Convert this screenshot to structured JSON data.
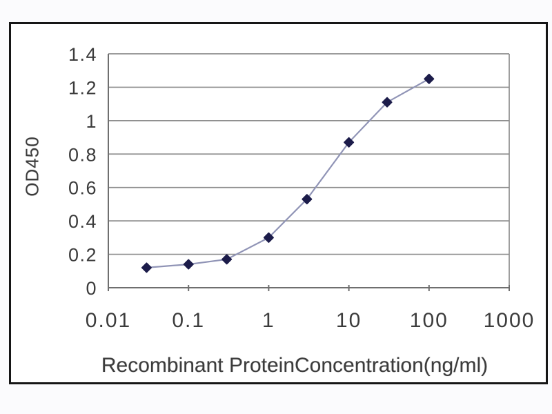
{
  "figure": {
    "background": "#fbfbfd",
    "frame_border_color": "#161616"
  },
  "chart_data": {
    "type": "line",
    "title": "",
    "xlabel": "Recombinant ProteinConcentration(ng/ml)",
    "ylabel": "OD450",
    "x_scale": "log",
    "xlim": [
      0.01,
      1000
    ],
    "ylim": [
      0,
      1.4
    ],
    "x_ticks": [
      "0.01",
      "0.1",
      "1",
      "10",
      "100",
      "1000"
    ],
    "y_ticks": [
      "0",
      "0.2",
      "0.4",
      "0.6",
      "0.8",
      "1",
      "1.2",
      "1.4"
    ],
    "grid": "horizontal",
    "legend": "none",
    "x": [
      0.03,
      0.1,
      0.3,
      1,
      3,
      10,
      30,
      100
    ],
    "series": [
      {
        "name": "OD450",
        "marker": "diamond",
        "values": [
          0.12,
          0.14,
          0.17,
          0.3,
          0.53,
          0.87,
          1.11,
          1.25
        ]
      }
    ],
    "colors": {
      "line": "#9094b6",
      "marker": "#1c1c4a",
      "grid": "#8d8d8d",
      "axis": "#6f6f6f",
      "text": "#3c3c3c"
    }
  }
}
